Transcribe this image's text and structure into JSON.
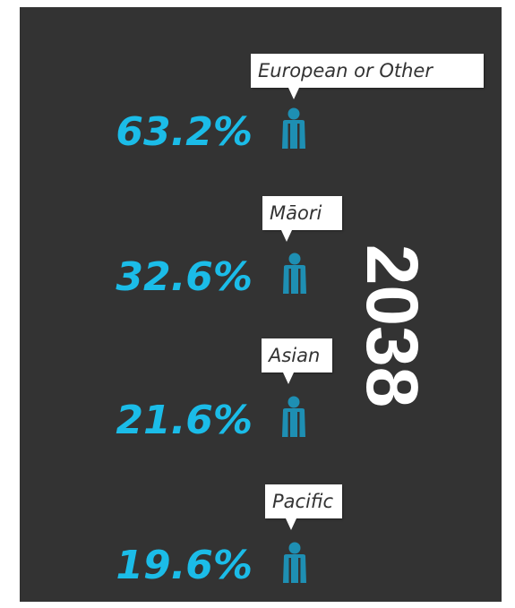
{
  "year": "2038",
  "colors": {
    "background": "#333333",
    "percent_text": "#1BBCE8",
    "person_icon": "#1E8FB3",
    "callout": "#ffffff",
    "callout_text": "#333333",
    "year_text": "#ffffff"
  },
  "chart_data": {
    "type": "table",
    "title": "2038",
    "categories": [
      "European or Other",
      "Māori",
      "Asian",
      "Pacific"
    ],
    "values": [
      63.2,
      32.6,
      21.6,
      19.6
    ],
    "labels": [
      "63.2%",
      "32.6%",
      "21.6%",
      "19.6%"
    ],
    "icon": "person-icon"
  }
}
